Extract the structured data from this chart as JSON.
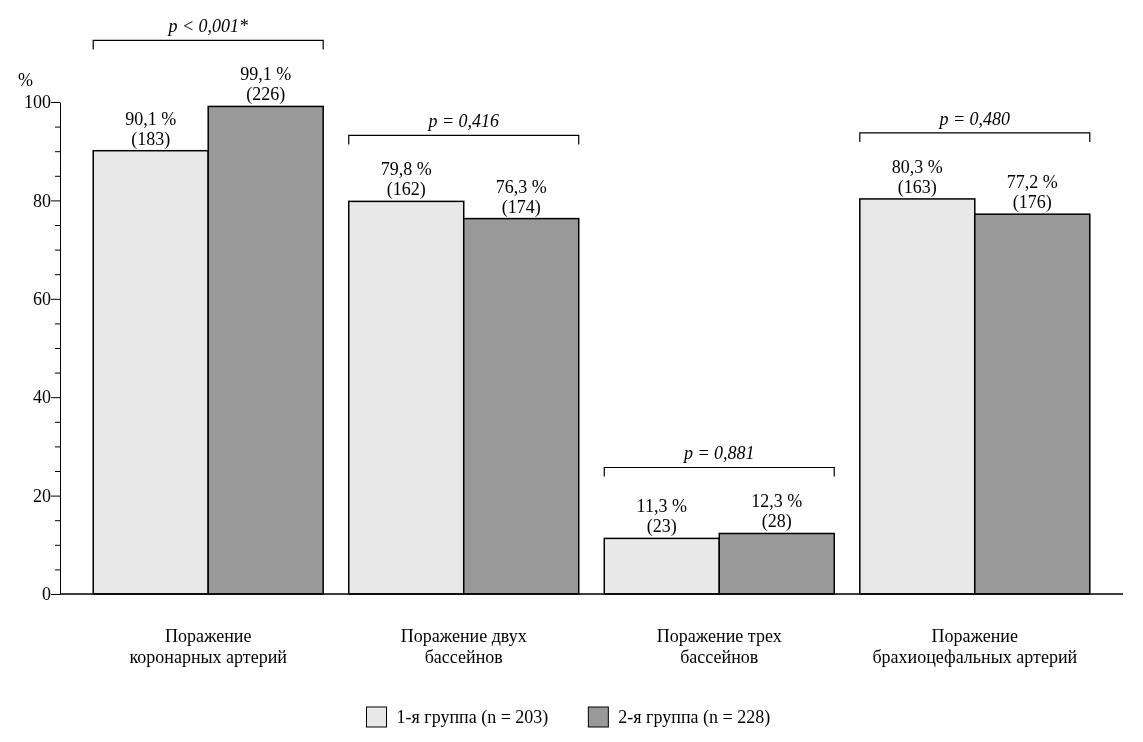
{
  "chart_data": {
    "type": "bar",
    "ylabel": "%",
    "categories": [
      "Поражение\nкоронарных артерий",
      "Поражение двух\nбассейнов",
      "Поражение трех\nбассейнов",
      "Поражение\nбрахиоцефальных артерий"
    ],
    "series": [
      {
        "name": "1-я группа (n = 203)",
        "color": "#e8e8e8",
        "values": [
          90.1,
          79.8,
          11.3,
          80.3
        ],
        "value_labels": [
          "90,1 %\n(183)",
          "79,8 %\n(162)",
          "11,3 %\n(23)",
          "80,3 %\n(163)"
        ]
      },
      {
        "name": "2-я группа (n = 228)",
        "color": "#999999",
        "values": [
          99.1,
          76.3,
          12.3,
          77.2
        ],
        "value_labels": [
          "99,1 %\n(226)",
          "76,3 %\n(174)",
          "12,3 %\n(28)",
          "77,2 %\n(176)"
        ]
      }
    ],
    "ylim": [
      0,
      100
    ],
    "yticks": [
      0,
      {
        "value": 5,
        "label": null
      },
      {
        "value": 10,
        "label": null
      },
      {
        "value": 15,
        "label": null
      },
      20,
      {
        "value": 25,
        "label": null
      },
      {
        "value": 30,
        "label": null
      },
      {
        "value": 35,
        "label": null
      },
      40,
      {
        "value": 45,
        "label": null
      },
      {
        "value": 50,
        "label": null
      },
      {
        "value": 55,
        "label": null
      },
      60,
      {
        "value": 65,
        "label": null
      },
      {
        "value": 70,
        "label": null
      },
      {
        "value": 75,
        "label": null
      },
      80,
      {
        "value": 85,
        "label": null
      },
      {
        "value": 90,
        "label": null
      },
      {
        "value": 95,
        "label": null
      },
      100
    ],
    "annotations": [
      "p < 0,001*",
      "p = 0,416",
      "p = 0,881",
      "p = 0,480"
    ],
    "grid": false,
    "legend": "bottom"
  }
}
